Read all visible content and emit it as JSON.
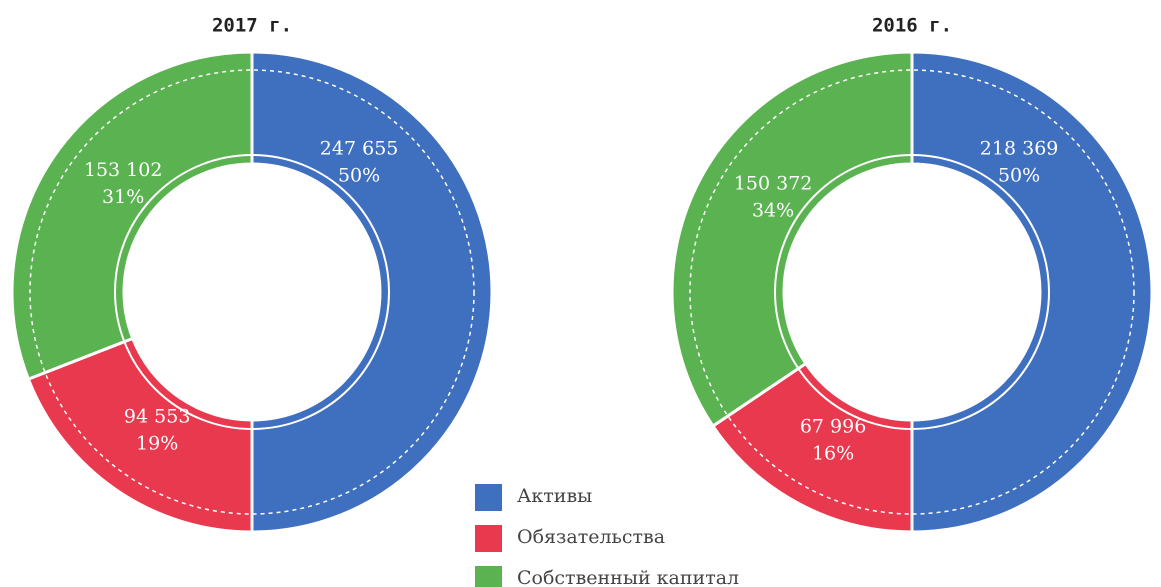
{
  "chart_data": [
    {
      "type": "pie",
      "title": "2017 г.",
      "categories": [
        "Активы",
        "Обязательства",
        "Собственный капитал"
      ],
      "values": [
        247655,
        94553,
        153102
      ],
      "value_labels": [
        "247 655",
        "94 553",
        "153 102"
      ],
      "percent_labels": [
        "50%",
        "19%",
        "31%"
      ],
      "colors": [
        "#3f6fbf",
        "#e8394f",
        "#5bb251"
      ]
    },
    {
      "type": "pie",
      "title": "2016 г.",
      "categories": [
        "Активы",
        "Обязательства",
        "Собственный капитал"
      ],
      "values": [
        218369,
        67996,
        150372
      ],
      "value_labels": [
        "218 369",
        "67 996",
        "150 372"
      ],
      "percent_labels": [
        "50%",
        "16%",
        "34%"
      ],
      "colors": [
        "#3f6fbf",
        "#e8394f",
        "#5bb251"
      ]
    }
  ]
}
